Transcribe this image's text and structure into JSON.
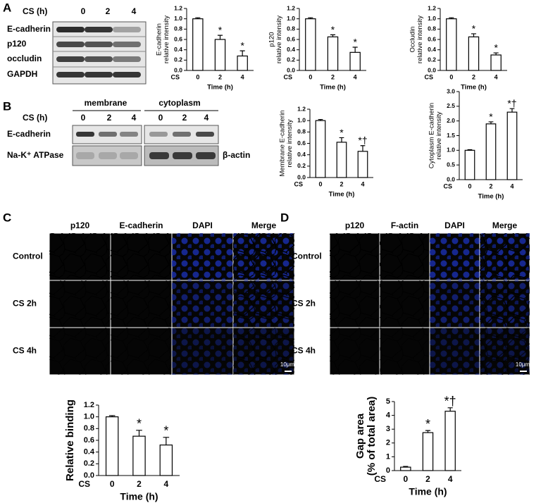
{
  "figure": {
    "panels": [
      "A",
      "B",
      "C",
      "D"
    ],
    "blot_a": {
      "header": "CS (h)",
      "lanes": [
        "0",
        "2",
        "4"
      ],
      "rows": [
        "E-cadherin",
        "p120",
        "occludin",
        "GAPDH"
      ]
    },
    "blot_b": {
      "groups": [
        "membrane",
        "cytoplasm"
      ],
      "header": "CS (h)",
      "lanes": [
        "0",
        "2",
        "4",
        "0",
        "2",
        "4"
      ],
      "rows": [
        "E-cadherin",
        "Na-K⁺ ATPase"
      ],
      "right_label": "β-actin"
    },
    "micro_c": {
      "columns": [
        "p120",
        "E-cadherin",
        "DAPI",
        "Merge"
      ],
      "rows": [
        "Control",
        "CS 2h",
        "CS 4h"
      ],
      "scale": "10μm"
    },
    "micro_d": {
      "columns": [
        "p120",
        "F-actin",
        "DAPI",
        "Merge"
      ],
      "rows": [
        "Control",
        "CS 2h",
        "CS 4h"
      ],
      "scale": "10μm"
    }
  },
  "chart_data": [
    {
      "type": "bar",
      "ylabel": [
        "E-cadherin",
        "relative intensity"
      ],
      "xlabel": "Time (h)",
      "x_prefix": "CS",
      "categories": [
        "0",
        "2",
        "4"
      ],
      "values": [
        1.0,
        0.6,
        0.28
      ],
      "errors": [
        0.02,
        0.08,
        0.1
      ],
      "annotations": [
        null,
        "*",
        "*"
      ],
      "ylim": [
        0,
        1.2
      ],
      "yticks": [
        {
          "value": 0,
          "label": "0.0"
        },
        0.2,
        0.4,
        0.6,
        0.8,
        {
          "value": 1,
          "label": "1.0"
        },
        1.2
      ]
    },
    {
      "type": "bar",
      "ylabel": [
        "p120",
        "relative intensity"
      ],
      "xlabel": "Time (h)",
      "x_prefix": "CS",
      "categories": [
        "0",
        "2",
        "4"
      ],
      "values": [
        1.0,
        0.65,
        0.35
      ],
      "errors": [
        0.02,
        0.04,
        0.1
      ],
      "annotations": [
        null,
        "*",
        "*"
      ],
      "ylim": [
        0,
        1.2
      ],
      "yticks": [
        {
          "value": 0,
          "label": "0.0"
        },
        0.2,
        0.4,
        0.6,
        0.8,
        {
          "value": 1,
          "label": "1.0"
        },
        1.2
      ]
    },
    {
      "type": "bar",
      "ylabel": [
        "Occludin",
        "relative intensity"
      ],
      "xlabel": "Time (h)",
      "x_prefix": "CS",
      "categories": [
        "0",
        "2",
        "4"
      ],
      "values": [
        1.0,
        0.65,
        0.3
      ],
      "errors": [
        0.02,
        0.06,
        0.04
      ],
      "annotations": [
        null,
        "*",
        "*"
      ],
      "ylim": [
        0,
        1.2
      ],
      "yticks": [
        {
          "value": 0,
          "label": "0.0"
        },
        0.2,
        0.4,
        0.6,
        0.8,
        {
          "value": 1,
          "label": "1.0"
        },
        1.2
      ]
    },
    {
      "type": "bar",
      "ylabel": [
        "Membrane E-cadherin",
        "relative intensity"
      ],
      "xlabel": "Time (h)",
      "x_prefix": "CS",
      "categories": [
        "0",
        "2",
        "4"
      ],
      "values": [
        1.0,
        0.62,
        0.46
      ],
      "errors": [
        0.02,
        0.08,
        0.1
      ],
      "annotations": [
        null,
        "*",
        "*†"
      ],
      "ylim": [
        0,
        1.2
      ],
      "yticks": [
        {
          "value": 0,
          "label": "0.0"
        },
        0.2,
        0.4,
        0.6,
        0.8,
        {
          "value": 1,
          "label": "1.0"
        },
        1.2
      ]
    },
    {
      "type": "bar",
      "ylabel": [
        "Cytoplasm E-cadherin",
        "relative intensity"
      ],
      "xlabel": "Time (h)",
      "x_prefix": "CS",
      "categories": [
        "0",
        "2",
        "4"
      ],
      "values": [
        1.0,
        1.9,
        2.3
      ],
      "errors": [
        0.02,
        0.07,
        0.12
      ],
      "annotations": [
        null,
        "*",
        "*†"
      ],
      "ylim": [
        0,
        3
      ],
      "yticks": [
        {
          "value": 0,
          "label": "0.0"
        },
        0.5,
        {
          "value": 1,
          "label": "1.0"
        },
        1.5,
        {
          "value": 2,
          "label": "2.0"
        },
        2.5,
        {
          "value": 3,
          "label": "3.0"
        }
      ]
    },
    {
      "type": "bar",
      "ylabel": [
        "Relative binding"
      ],
      "xlabel": "Time (h)",
      "x_prefix": "CS",
      "categories": [
        "0",
        "2",
        "4"
      ],
      "values": [
        1.0,
        0.67,
        0.52
      ],
      "errors": [
        0.02,
        0.1,
        0.13
      ],
      "annotations": [
        null,
        "*",
        "*"
      ],
      "ylim": [
        0,
        1.2
      ],
      "yticks": [
        {
          "value": 0,
          "label": "0.0"
        },
        0.2,
        0.4,
        0.6,
        0.8,
        {
          "value": 1,
          "label": "1.0"
        },
        1.2
      ]
    },
    {
      "type": "bar",
      "ylabel": [
        "Gap area",
        "(% of total area)"
      ],
      "xlabel": "Time (h)",
      "x_prefix": "CS",
      "categories": [
        "0",
        "2",
        "4"
      ],
      "values": [
        0.25,
        2.75,
        4.3
      ],
      "errors": [
        0.05,
        0.15,
        0.25
      ],
      "annotations": [
        null,
        "*",
        "*†"
      ],
      "ylim": [
        0,
        5
      ],
      "yticks": [
        0,
        1,
        2,
        3,
        4,
        5
      ]
    }
  ]
}
